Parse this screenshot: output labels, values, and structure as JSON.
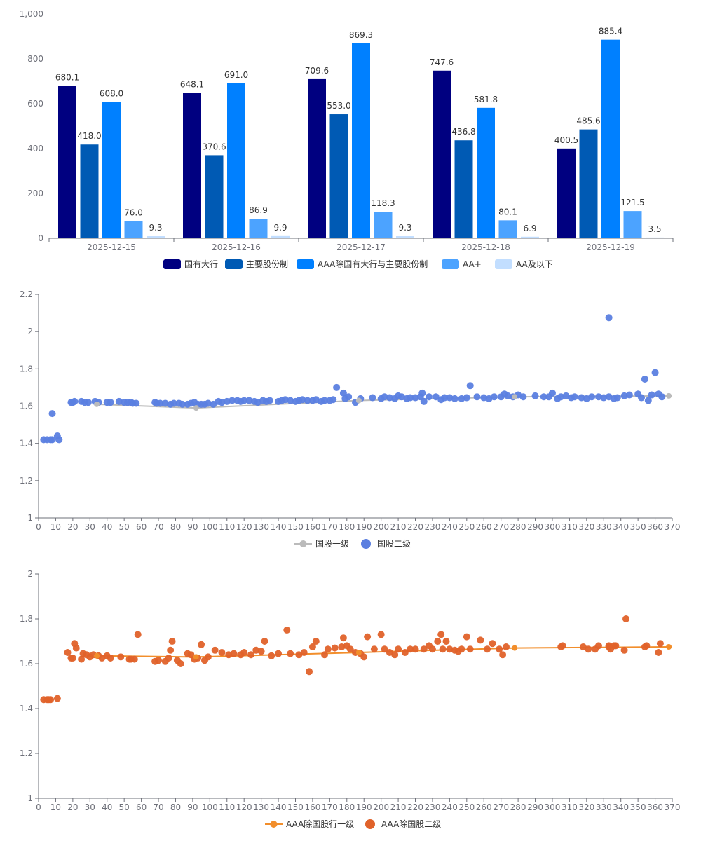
{
  "chart_data": [
    {
      "type": "bar",
      "categories": [
        "2025-12-15",
        "2025-12-16",
        "2025-12-17",
        "2025-12-18",
        "2025-12-19"
      ],
      "ylim": [
        0,
        1000
      ],
      "yticks": [
        "0",
        "200",
        "400",
        "600",
        "800",
        "1,000"
      ],
      "series": [
        {
          "name": "国有大行",
          "color": "#000080",
          "values": [
            680.1,
            648.1,
            709.6,
            747.6,
            400.5
          ],
          "labels": [
            "680.1",
            "648.1",
            "709.6",
            "747.6",
            "400.5"
          ]
        },
        {
          "name": "主要股份制",
          "color": "#005ab4",
          "values": [
            418.0,
            370.6,
            553.0,
            436.8,
            485.6
          ],
          "labels": [
            "418.0",
            "370.6",
            "553.0",
            "436.8",
            "485.6"
          ]
        },
        {
          "name": "AAA除国有大行与主要股份制",
          "color": "#0080ff",
          "values": [
            608.0,
            691.0,
            869.3,
            581.8,
            885.4
          ],
          "labels": [
            "608.0",
            "691.0",
            "869.3",
            "581.8",
            "885.4"
          ]
        },
        {
          "name": "AA+",
          "color": "#4ca3ff",
          "values": [
            76.0,
            86.9,
            118.3,
            80.1,
            121.5
          ],
          "labels": [
            "76.0",
            "86.9",
            "118.3",
            "80.1",
            "121.5"
          ]
        },
        {
          "name": "AA及以下",
          "color": "#c2deff",
          "values": [
            9.3,
            9.9,
            9.3,
            6.9,
            3.5
          ],
          "labels": [
            "9.3",
            "9.9",
            "9.3",
            "6.9",
            "3.5"
          ]
        }
      ]
    },
    {
      "type": "scatter",
      "xlim": [
        0,
        370
      ],
      "ylim": [
        1,
        2.2
      ],
      "xticks": [
        "0",
        "10",
        "20",
        "30",
        "40",
        "50",
        "60",
        "70",
        "80",
        "90",
        "100",
        "110",
        "120",
        "130",
        "140",
        "150",
        "160",
        "170",
        "180",
        "190",
        "200",
        "210",
        "220",
        "230",
        "240",
        "250",
        "260",
        "270",
        "280",
        "290",
        "300",
        "310",
        "320",
        "330",
        "340",
        "350",
        "360",
        "370"
      ],
      "yticks": [
        "1",
        "1.2",
        "1.4",
        "1.6",
        "1.8",
        "2",
        "2.2"
      ],
      "series": [
        {
          "name": "国股一级",
          "color": "#bbbbbb",
          "kind": "line",
          "x": [
            34,
            92,
            187,
            278,
            368
          ],
          "y": [
            1.61,
            1.59,
            1.63,
            1.65,
            1.655
          ]
        },
        {
          "name": "国股二级",
          "color": "#5b7fe0",
          "kind": "scatter",
          "x": [
            3,
            5,
            7,
            8,
            11,
            12,
            8,
            19,
            20,
            21,
            25,
            27,
            29,
            33,
            35,
            40,
            42,
            47,
            50,
            52,
            54,
            55,
            57,
            68,
            69,
            71,
            74,
            77,
            79,
            82,
            84,
            87,
            89,
            91,
            93,
            95,
            97,
            99,
            102,
            105,
            107,
            110,
            113,
            116,
            118,
            120,
            123,
            126,
            128,
            131,
            133,
            135,
            140,
            142,
            144,
            147,
            150,
            152,
            154,
            157,
            160,
            162,
            165,
            167,
            170,
            172,
            174,
            178,
            179,
            181,
            185,
            188,
            195,
            200,
            202,
            205,
            208,
            210,
            212,
            215,
            217,
            220,
            223,
            224,
            225,
            228,
            232,
            235,
            237,
            240,
            243,
            247,
            250,
            252,
            256,
            260,
            263,
            266,
            270,
            272,
            274,
            277,
            280,
            283,
            290,
            295,
            298,
            300,
            303,
            305,
            308,
            311,
            313,
            317,
            320,
            323,
            327,
            330,
            333,
            336,
            338,
            342,
            345,
            350,
            352,
            354,
            356,
            358,
            360,
            362,
            364,
            333
          ],
          "y": [
            1.42,
            1.42,
            1.42,
            1.42,
            1.44,
            1.42,
            1.56,
            1.62,
            1.62,
            1.625,
            1.625,
            1.62,
            1.62,
            1.625,
            1.62,
            1.62,
            1.62,
            1.625,
            1.62,
            1.62,
            1.62,
            1.615,
            1.615,
            1.62,
            1.615,
            1.615,
            1.615,
            1.61,
            1.615,
            1.615,
            1.61,
            1.61,
            1.615,
            1.62,
            1.61,
            1.61,
            1.61,
            1.615,
            1.61,
            1.625,
            1.62,
            1.625,
            1.63,
            1.63,
            1.625,
            1.63,
            1.63,
            1.625,
            1.62,
            1.63,
            1.625,
            1.63,
            1.625,
            1.63,
            1.635,
            1.63,
            1.625,
            1.63,
            1.635,
            1.63,
            1.63,
            1.635,
            1.625,
            1.63,
            1.63,
            1.635,
            1.7,
            1.67,
            1.64,
            1.65,
            1.62,
            1.64,
            1.645,
            1.64,
            1.65,
            1.645,
            1.64,
            1.655,
            1.65,
            1.64,
            1.645,
            1.645,
            1.65,
            1.67,
            1.625,
            1.65,
            1.65,
            1.635,
            1.645,
            1.645,
            1.64,
            1.64,
            1.645,
            1.71,
            1.65,
            1.645,
            1.64,
            1.65,
            1.65,
            1.665,
            1.655,
            1.65,
            1.66,
            1.65,
            1.655,
            1.65,
            1.65,
            1.67,
            1.64,
            1.65,
            1.655,
            1.645,
            1.65,
            1.645,
            1.64,
            1.65,
            1.65,
            1.645,
            1.65,
            1.64,
            1.645,
            1.655,
            1.66,
            1.665,
            1.645,
            1.745,
            1.63,
            1.66,
            1.78,
            1.665,
            1.65,
            2.075
          ]
        }
      ]
    },
    {
      "type": "scatter",
      "xlim": [
        0,
        370
      ],
      "ylim": [
        1,
        2
      ],
      "xticks": [
        "0",
        "10",
        "20",
        "30",
        "40",
        "50",
        "60",
        "70",
        "80",
        "90",
        "100",
        "110",
        "120",
        "130",
        "140",
        "150",
        "160",
        "170",
        "180",
        "190",
        "200",
        "210",
        "220",
        "230",
        "240",
        "250",
        "260",
        "270",
        "280",
        "290",
        "300",
        "310",
        "320",
        "330",
        "340",
        "350",
        "360",
        "370"
      ],
      "yticks": [
        "1",
        "1.2",
        "1.4",
        "1.6",
        "1.8",
        "2"
      ],
      "series": [
        {
          "name": "AAA除国股行一级",
          "color": "#f28e2b",
          "kind": "line",
          "x": [
            34,
            92,
            187,
            278,
            368
          ],
          "y": [
            1.635,
            1.63,
            1.65,
            1.67,
            1.675
          ]
        },
        {
          "name": "AAA除国股二级",
          "color": "#e0622a",
          "kind": "scatter",
          "x": [
            3,
            5,
            6,
            7,
            11,
            17,
            19,
            20,
            21,
            22,
            25,
            26,
            28,
            30,
            32,
            35,
            37,
            40,
            42,
            48,
            53,
            54,
            56,
            58,
            68,
            70,
            74,
            76,
            77,
            78,
            81,
            83,
            87,
            89,
            91,
            93,
            95,
            97,
            99,
            103,
            107,
            111,
            114,
            118,
            120,
            124,
            127,
            130,
            132,
            136,
            140,
            145,
            147,
            152,
            155,
            158,
            160,
            162,
            167,
            169,
            173,
            177,
            178,
            180,
            182,
            185,
            188,
            190,
            192,
            196,
            200,
            202,
            205,
            208,
            210,
            214,
            217,
            220,
            225,
            228,
            230,
            233,
            235,
            236,
            238,
            240,
            243,
            245,
            247,
            250,
            252,
            258,
            262,
            265,
            269,
            271,
            273,
            305,
            306,
            318,
            321,
            325,
            327,
            333,
            334,
            336,
            337,
            342,
            343,
            354,
            355,
            362,
            363,
            333
          ],
          "y": [
            1.44,
            1.44,
            1.44,
            1.44,
            1.445,
            1.65,
            1.625,
            1.625,
            1.69,
            1.67,
            1.62,
            1.645,
            1.64,
            1.63,
            1.64,
            1.635,
            1.625,
            1.635,
            1.625,
            1.63,
            1.62,
            1.62,
            1.62,
            1.73,
            1.61,
            1.615,
            1.61,
            1.625,
            1.66,
            1.7,
            1.615,
            1.6,
            1.645,
            1.64,
            1.62,
            1.625,
            1.685,
            1.615,
            1.63,
            1.66,
            1.65,
            1.64,
            1.645,
            1.64,
            1.65,
            1.64,
            1.66,
            1.655,
            1.7,
            1.635,
            1.645,
            1.75,
            1.645,
            1.64,
            1.65,
            1.565,
            1.675,
            1.7,
            1.64,
            1.665,
            1.67,
            1.675,
            1.715,
            1.68,
            1.665,
            1.65,
            1.645,
            1.63,
            1.72,
            1.665,
            1.73,
            1.665,
            1.65,
            1.64,
            1.665,
            1.65,
            1.665,
            1.665,
            1.665,
            1.68,
            1.665,
            1.7,
            1.73,
            1.665,
            1.7,
            1.665,
            1.66,
            1.655,
            1.665,
            1.72,
            1.665,
            1.705,
            1.665,
            1.69,
            1.665,
            1.64,
            1.675,
            1.675,
            1.68,
            1.675,
            1.665,
            1.665,
            1.68,
            1.675,
            1.665,
            1.68,
            1.68,
            1.66,
            1.8,
            1.675,
            1.68,
            1.65,
            1.69,
            1.68
          ]
        }
      ]
    }
  ]
}
